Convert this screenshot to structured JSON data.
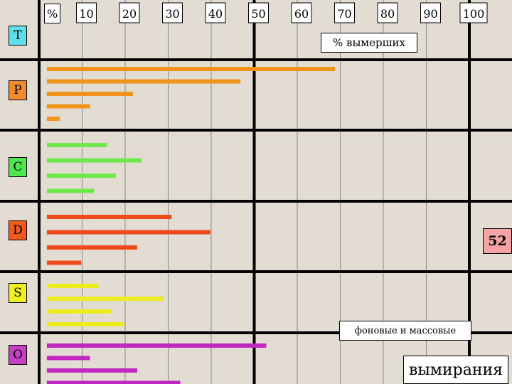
{
  "colors": {
    "grid": "#000000",
    "minor_grid": "#8a8a8a",
    "background": "#e3dcd3"
  },
  "labels": {
    "percent_sign": "%",
    "pct_extinct": "% вымерших",
    "background_and_mass": "фоновые и массовые",
    "extinctions": "вымирания",
    "highlight_value": "52"
  },
  "chart_data": {
    "type": "bar",
    "orientation": "horizontal",
    "xlim": [
      0,
      110
    ],
    "x_ticks": [
      "10",
      "20",
      "30",
      "40",
      "50",
      "60",
      "70",
      "80",
      "90",
      "100"
    ],
    "highlight_value": "52",
    "groups": [
      {
        "name": "T",
        "color": "#5fe0e8",
        "bar_color": "#ff9500",
        "values": []
      },
      {
        "name": "P",
        "color": "#f08a2a",
        "bar_color": "#f0941a",
        "values": [
          67,
          45,
          20,
          10,
          3
        ]
      },
      {
        "name": "C",
        "color": "#4ee84e",
        "bar_color": "#6ee84a",
        "values": [
          14,
          22,
          16,
          11
        ]
      },
      {
        "name": "D",
        "color": "#f05a20",
        "bar_color": "#ee4a1e",
        "values": [
          29,
          38,
          21,
          8
        ]
      },
      {
        "name": "S",
        "color": "#f0f020",
        "bar_color": "#ecec20",
        "values": [
          12,
          27,
          15,
          18
        ]
      },
      {
        "name": "O",
        "color": "#c640c6",
        "bar_color": "#c026c0",
        "values": [
          51,
          10,
          21,
          31
        ]
      }
    ]
  }
}
